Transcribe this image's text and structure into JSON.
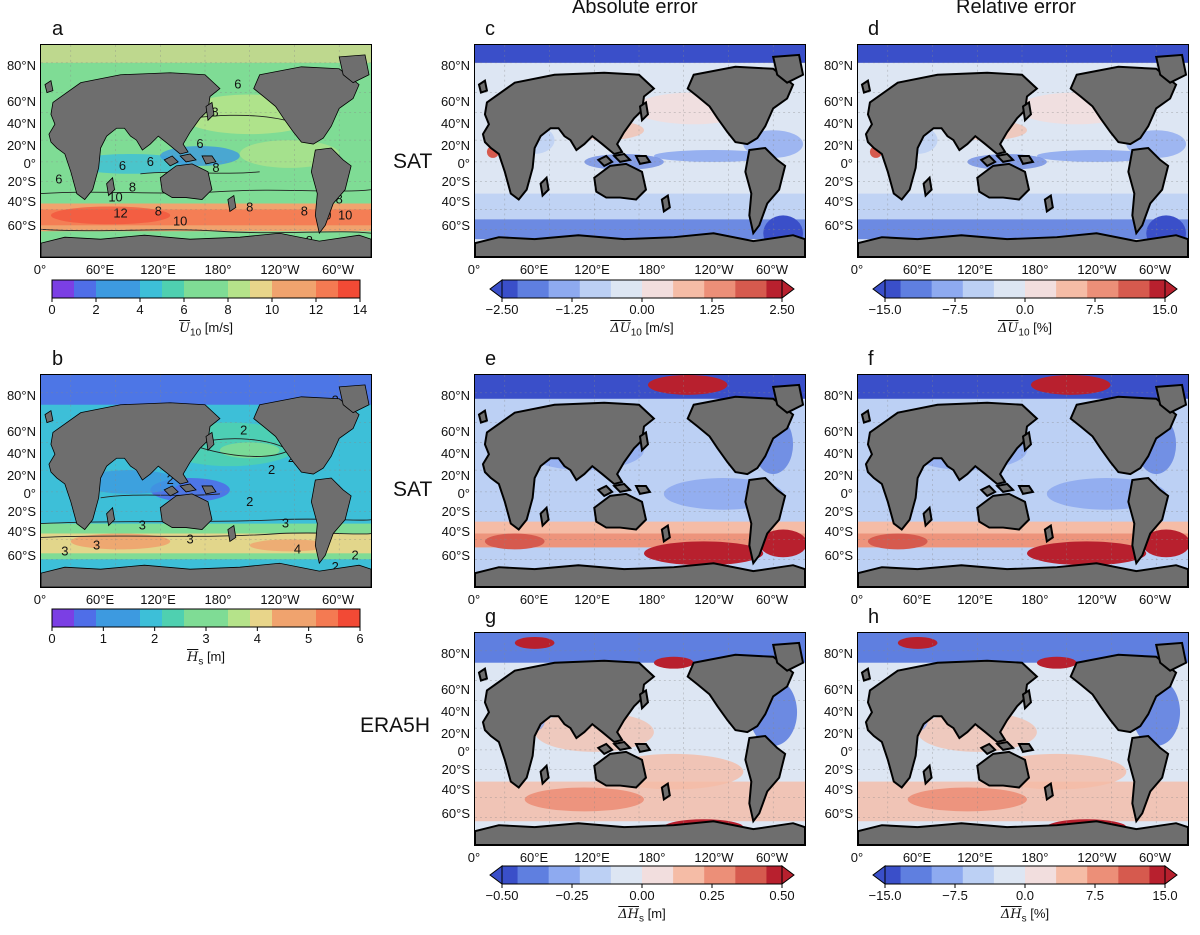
{
  "column_titles": [
    "Absolute error",
    "Relative error"
  ],
  "row_labels": [
    "SAT",
    "SAT",
    "ERA5H"
  ],
  "lat_ticks": [
    "80°N",
    "60°N",
    "40°N",
    "20°N",
    "0°",
    "20°S",
    "40°S",
    "60°S"
  ],
  "lon_ticks": [
    "0°",
    "60°E",
    "120°E",
    "180°",
    "120°W",
    "60°W"
  ],
  "panels": {
    "a": {
      "label": "a",
      "quantity": "mean 10-m wind speed",
      "contours": [
        "6",
        "6",
        "6",
        "6",
        "6",
        "8",
        "8",
        "8",
        "8",
        "8",
        "8",
        "8",
        "8",
        "10",
        "10",
        "10",
        "10",
        "12"
      ]
    },
    "b": {
      "label": "b",
      "quantity": "mean significant wave height",
      "contours": [
        "2",
        "2",
        "2",
        "2",
        "2",
        "2",
        "3",
        "3",
        "3",
        "3",
        "3",
        "4",
        "2",
        "2"
      ]
    },
    "c": {
      "label": "c",
      "quantity": "absolute error U10 (SAT)"
    },
    "d": {
      "label": "d",
      "quantity": "relative error U10 (SAT)"
    },
    "e": {
      "label": "e",
      "quantity": "absolute error Hs (SAT)"
    },
    "f": {
      "label": "f",
      "quantity": "relative error Hs (SAT)"
    },
    "g": {
      "label": "g",
      "quantity": "absolute error Hs (ERA5H)"
    },
    "h": {
      "label": "h",
      "quantity": "relative error Hs (ERA5H)"
    }
  },
  "colorbars": {
    "a": {
      "ticks": [
        "0",
        "2",
        "4",
        "6",
        "8",
        "10",
        "12",
        "14"
      ],
      "range": [
        0,
        14
      ],
      "label_sym": "U",
      "label_sub": "10",
      "label_unit": " [m/s]"
    },
    "b": {
      "ticks": [
        "0",
        "1",
        "2",
        "3",
        "4",
        "5",
        "6"
      ],
      "range": [
        0,
        6
      ],
      "label_sym": "H",
      "label_sub": "s",
      "label_unit": " [m]"
    },
    "c": {
      "ticks": [
        "−2.50",
        "−1.25",
        "0.00",
        "1.25",
        "2.50"
      ],
      "range": [
        -2.5,
        2.5
      ],
      "label_sym": "ΔU",
      "label_sub": "10",
      "label_unit": " [m/s]"
    },
    "d": {
      "ticks": [
        "−15.0",
        "−7.5",
        "0.0",
        "7.5",
        "15.0"
      ],
      "range": [
        -15,
        15
      ],
      "label_sym": "ΔU",
      "label_sub": "10",
      "label_unit": " [%]"
    },
    "g": {
      "ticks": [
        "−0.50",
        "−0.25",
        "0.00",
        "0.25",
        "0.50"
      ],
      "range": [
        -0.5,
        0.5
      ],
      "label_sym": "ΔH",
      "label_sub": "s",
      "label_unit": " [m]"
    },
    "h": {
      "ticks": [
        "−15.0",
        "−7.5",
        "0.0",
        "7.5",
        "15.0"
      ],
      "range": [
        -15,
        15
      ],
      "label_sym": "ΔH",
      "label_sub": "s",
      "label_unit": " [%]"
    }
  },
  "colors": {
    "land": "#6e6e6e",
    "seq_wind": [
      "#7b3fe4",
      "#4f6ee8",
      "#3d9ae0",
      "#3dbfd8",
      "#4fd0b0",
      "#7fdc95",
      "#b5e38a",
      "#e8d58a",
      "#f0a36e",
      "#f47a52",
      "#f24a35"
    ],
    "div": [
      "#3a4fc9",
      "#5f7fe0",
      "#8eaaf0",
      "#bcd0f4",
      "#dde6f3",
      "#f2dede",
      "#f5bca6",
      "#ec8f78",
      "#d65a4e",
      "#b8202e"
    ]
  }
}
